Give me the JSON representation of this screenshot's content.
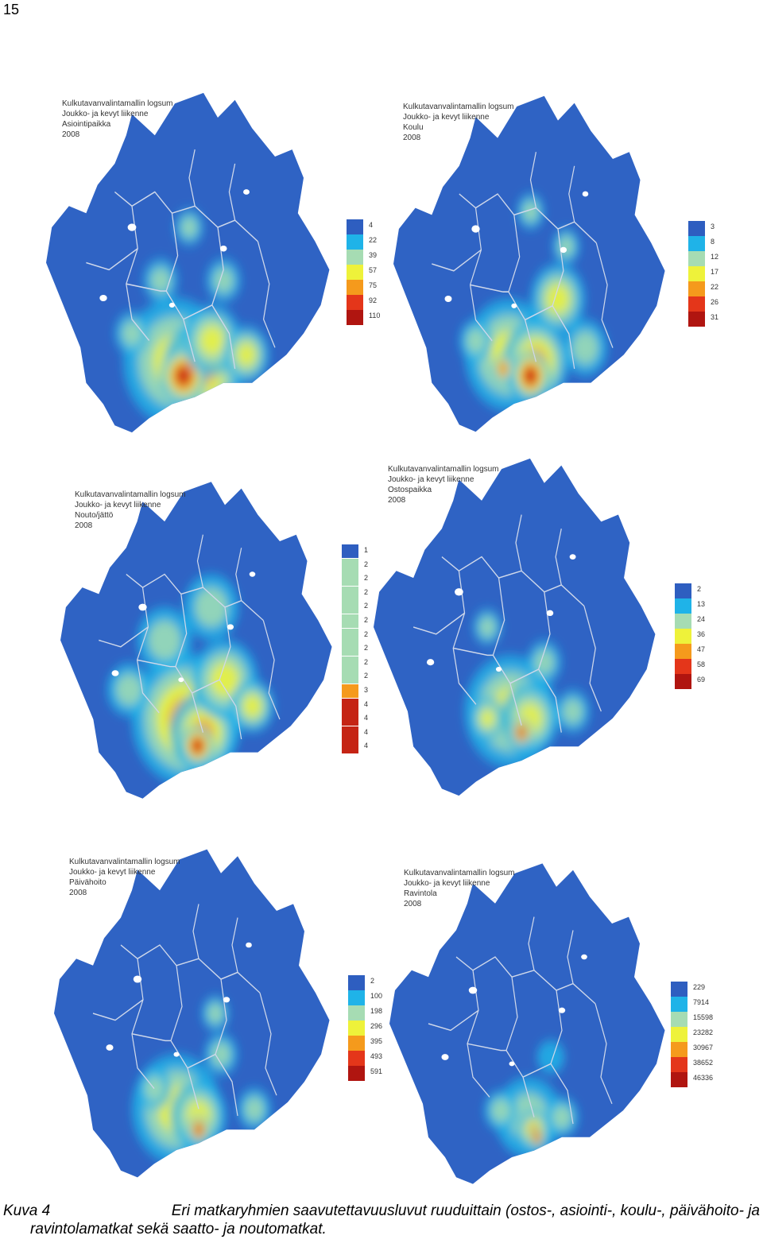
{
  "page_number": "15",
  "colors": {
    "background": "#ffffff",
    "land": "#2f63c4",
    "boundary": "#cfd8ea",
    "ramp": [
      "#2e5ec0",
      "#1fb3e8",
      "#a6dcb3",
      "#eef23a",
      "#f59a1c",
      "#e4361a",
      "#b01510"
    ]
  },
  "maps": [
    {
      "title_lines": [
        "Kulkutavanvalintamallin logsum",
        "Joukko- ja kevyt liikenne",
        "Asiointipaikka",
        "2008"
      ],
      "legend": [
        {
          "label": "4",
          "color": "#2e5ec0"
        },
        {
          "label": "22",
          "color": "#1fb3e8"
        },
        {
          "label": "39",
          "color": "#a6dcb3"
        },
        {
          "label": "57",
          "color": "#eef23a"
        },
        {
          "label": "75",
          "color": "#f59a1c"
        },
        {
          "label": "92",
          "color": "#e4361a"
        },
        {
          "label": "110",
          "color": "#b01510"
        }
      ]
    },
    {
      "title_lines": [
        "Kulkutavanvalintamallin logsum",
        "Joukko- ja kevyt liikenne",
        "Koulu",
        "2008"
      ],
      "legend": [
        {
          "label": "3",
          "color": "#2e5ec0"
        },
        {
          "label": "8",
          "color": "#1fb3e8"
        },
        {
          "label": "12",
          "color": "#a6dcb3"
        },
        {
          "label": "17",
          "color": "#eef23a"
        },
        {
          "label": "22",
          "color": "#f59a1c"
        },
        {
          "label": "26",
          "color": "#e4361a"
        },
        {
          "label": "31",
          "color": "#b01510"
        }
      ]
    },
    {
      "title_lines": [
        "Kulkutavanvalintamallin logsum",
        "Joukko- ja kevyt liikenne",
        "Nouto/jättö",
        "2008"
      ],
      "legend": [
        {
          "label": "1",
          "color": "#2e5ec0"
        },
        {
          "label": "2",
          "color": "#a6dcb3"
        },
        {
          "label": "2",
          "color": "#a6dcb3"
        },
        {
          "label": "2",
          "color": "#a6dcb3"
        },
        {
          "label": "2",
          "color": "#a6dcb3"
        },
        {
          "label": "2",
          "color": "#a6dcb3"
        },
        {
          "label": "2",
          "color": "#a6dcb3"
        },
        {
          "label": "2",
          "color": "#a6dcb3"
        },
        {
          "label": "2",
          "color": "#a6dcb3"
        },
        {
          "label": "2",
          "color": "#a6dcb3"
        },
        {
          "label": "3",
          "color": "#f59a1c"
        },
        {
          "label": "4",
          "color": "#c52414"
        },
        {
          "label": "4",
          "color": "#c52414"
        },
        {
          "label": "4",
          "color": "#c52414"
        },
        {
          "label": "4",
          "color": "#c52414"
        }
      ]
    },
    {
      "title_lines": [
        "Kulkutavanvalintamallin logsum",
        "Joukko- ja kevyt liikenne",
        "Ostospaikka",
        "2008"
      ],
      "legend": [
        {
          "label": "2",
          "color": "#2e5ec0"
        },
        {
          "label": "13",
          "color": "#1fb3e8"
        },
        {
          "label": "24",
          "color": "#a6dcb3"
        },
        {
          "label": "36",
          "color": "#eef23a"
        },
        {
          "label": "47",
          "color": "#f59a1c"
        },
        {
          "label": "58",
          "color": "#e4361a"
        },
        {
          "label": "69",
          "color": "#b01510"
        }
      ]
    },
    {
      "title_lines": [
        "Kulkutavanvalintamallin logsum",
        "Joukko- ja kevyt liikenne",
        "Päivähoito",
        "2008"
      ],
      "legend": [
        {
          "label": "2",
          "color": "#2e5ec0"
        },
        {
          "label": "100",
          "color": "#1fb3e8"
        },
        {
          "label": "198",
          "color": "#a6dcb3"
        },
        {
          "label": "296",
          "color": "#eef23a"
        },
        {
          "label": "395",
          "color": "#f59a1c"
        },
        {
          "label": "493",
          "color": "#e4361a"
        },
        {
          "label": "591",
          "color": "#b01510"
        }
      ]
    },
    {
      "title_lines": [
        "Kulkutavanvalintamallin logsum",
        "Joukko- ja kevyt liikenne",
        "Ravintola",
        "2008"
      ],
      "legend": [
        {
          "label": "229",
          "color": "#2e5ec0"
        },
        {
          "label": "7914",
          "color": "#1fb3e8"
        },
        {
          "label": "15598",
          "color": "#a6dcb3"
        },
        {
          "label": "23282",
          "color": "#eef23a"
        },
        {
          "label": "30967",
          "color": "#f59a1c"
        },
        {
          "label": "38652",
          "color": "#e4361a"
        },
        {
          "label": "46336",
          "color": "#b01510"
        }
      ]
    }
  ],
  "caption": {
    "label": "Kuva 4",
    "line1": "Eri matkaryhmien saavutettavuusluvut ruuduittain (ostos-, asiointi-, koulu-, päivähoito- ja",
    "line2": "ravintolamatkat sekä saatto- ja noutomatkat."
  }
}
